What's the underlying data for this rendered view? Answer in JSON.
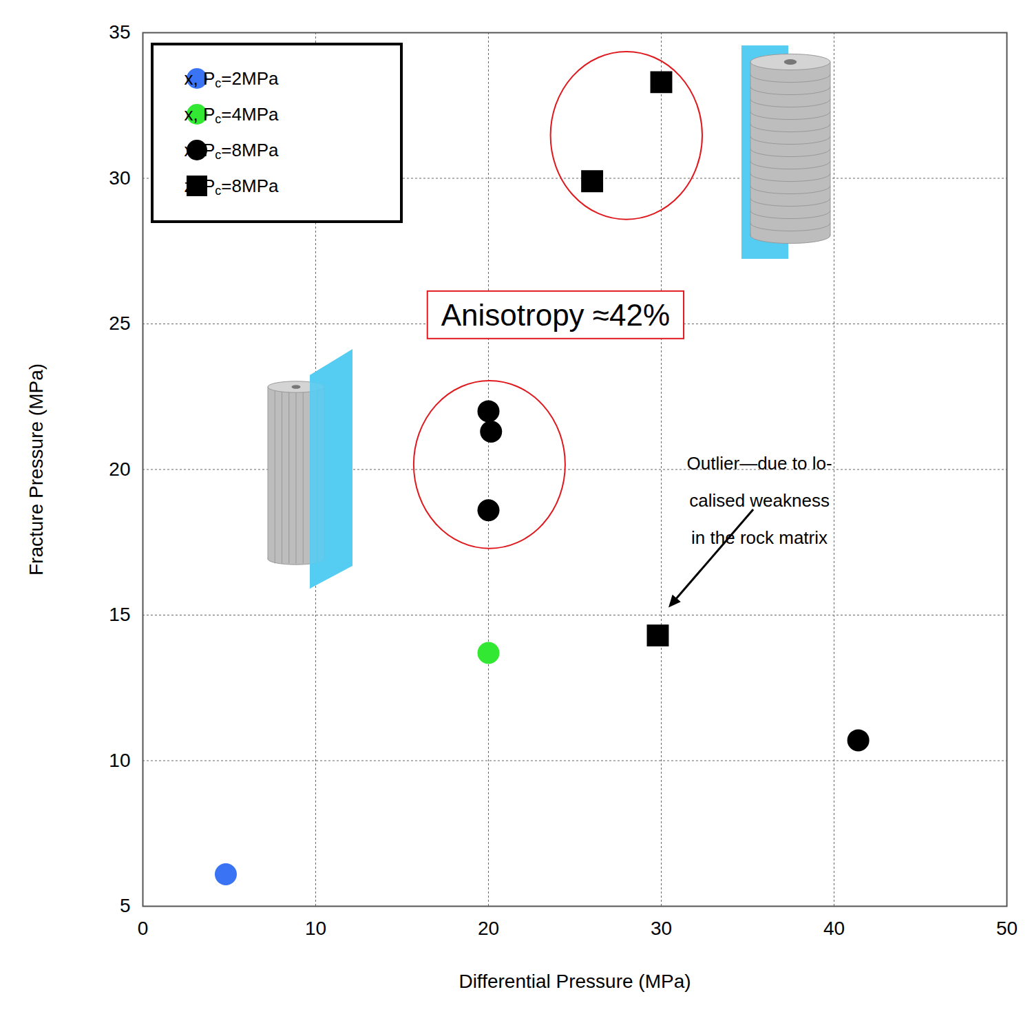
{
  "chart_data": {
    "type": "scatter",
    "x_label": "Differential Pressure (MPa)",
    "y_label": "Fracture Pressure (MPa)",
    "xlim": [
      0,
      50
    ],
    "ylim": [
      5,
      35
    ],
    "xticks": [
      0,
      10,
      20,
      30,
      40,
      50
    ],
    "yticks": [
      5,
      10,
      15,
      20,
      25,
      30,
      35
    ],
    "grid": true,
    "legend": "top-left",
    "series": [
      {
        "name": "x, Pc=2MPa",
        "color": "#3a74f4",
        "marker": "circle",
        "x": [
          4.8
        ],
        "values": [
          6.1
        ]
      },
      {
        "name": "x, Pc=4MPa",
        "color": "#33e833",
        "marker": "circle",
        "x": [
          20.0
        ],
        "values": [
          13.7
        ]
      },
      {
        "name": "x, Pc=8MPa",
        "color": "#000000",
        "marker": "circle",
        "x": [
          20.0,
          20.15,
          20.0,
          41.4
        ],
        "values": [
          22.0,
          21.3,
          18.6,
          10.7
        ]
      },
      {
        "name": "z, Pc=8MPa",
        "color": "#000000",
        "marker": "square",
        "x": [
          26.0,
          30.0,
          29.8
        ],
        "values": [
          29.9,
          33.3,
          14.3
        ]
      }
    ],
    "annotations": [
      {
        "text": "Anisotropy ≈42%",
        "x": 23.9,
        "y": 25.3
      },
      {
        "text": "Outlier—due to lo-\ncalised weakness\nin the rock matrix",
        "x": 35.7,
        "y": 20.2
      }
    ]
  }
}
